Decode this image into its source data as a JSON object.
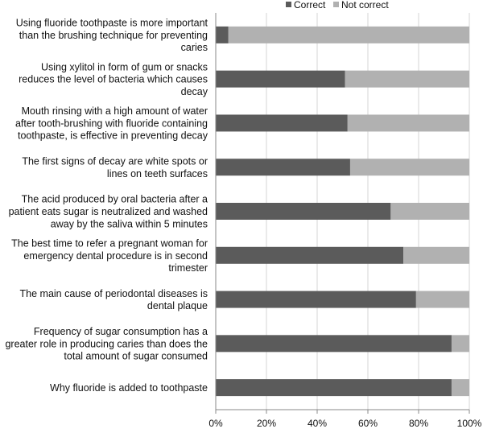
{
  "chart_data": {
    "type": "bar",
    "orientation": "horizontal",
    "stacked": true,
    "percent_stacked": true,
    "categories": [
      "Using fluoride toothpaste is more important than the brushing technique for preventing caries",
      "Using xylitol in form of gum or snacks reduces the level of bacteria which causes decay",
      "Mouth rinsing with a high amount of water after tooth-brushing with fluoride containing toothpaste, is effective in preventing decay",
      "The first signs of decay are white spots or lines on teeth surfaces",
      "The acid produced by oral bacteria after a patient eats sugar is neutralized and washed away by the saliva within 5 minutes",
      "The best time to refer a pregnant woman for emergency dental procedure is in second trimester",
      "The main cause of periodontal diseases is dental plaque",
      "Frequency of sugar consumption has a greater role in producing caries than does the total amount of sugar consumed",
      "Why fluoride is added to toothpaste"
    ],
    "category_lines": [
      [
        "Using fluoride toothpaste is more important",
        "than the brushing technique for preventing",
        "caries"
      ],
      [
        "Using xylitol in form of gum or snacks",
        "reduces the level of bacteria which causes",
        "decay"
      ],
      [
        "Mouth rinsing with a high amount of water",
        "after tooth-brushing with fluoride containing",
        "toothpaste, is effective in preventing decay"
      ],
      [
        "The first signs of decay are white spots or",
        "lines on teeth surfaces"
      ],
      [
        "The acid produced by oral bacteria after a",
        "patient eats sugar is neutralized and washed",
        "away by the saliva within 5 minutes"
      ],
      [
        "The best time to refer a pregnant woman for",
        "emergency dental procedure is in second",
        "trimester"
      ],
      [
        "The main cause of periodontal diseases is",
        "dental plaque"
      ],
      [
        "Frequency of sugar consumption has a",
        "greater role in producing caries than does the",
        "total amount of sugar consumed"
      ],
      [
        "Why fluoride is added to toothpaste"
      ]
    ],
    "series": [
      {
        "name": "Correct",
        "color": "#5b5b5b",
        "values": [
          5,
          51,
          52,
          53,
          69,
          74,
          79,
          93,
          93
        ]
      },
      {
        "name": "Not correct",
        "color": "#b1b1b1",
        "values": [
          95,
          49,
          48,
          47,
          31,
          26,
          21,
          7,
          7
        ]
      }
    ],
    "x_ticks": [
      "0%",
      "20%",
      "40%",
      "60%",
      "80%",
      "100%"
    ],
    "xlim": [
      0,
      100
    ],
    "title": "",
    "xlabel": "",
    "ylabel": "",
    "grid": "vertical",
    "grid_color": "#d4d4d4",
    "legend_position": "top-right"
  }
}
